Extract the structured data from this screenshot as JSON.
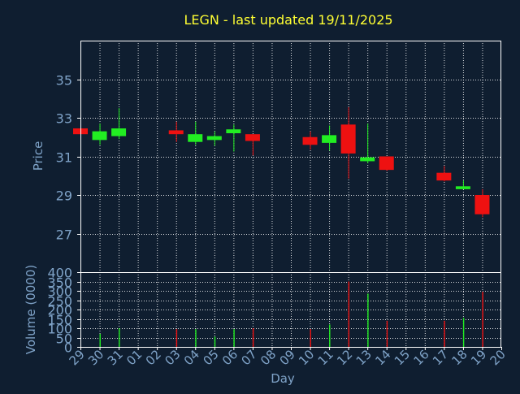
{
  "title": "LEGN - last updated 19/11/2025",
  "colors": {
    "background": "#0f1e30",
    "title": "#ffff33",
    "axis_text": "#7fa3c8",
    "frame": "#ffffff",
    "grid": "#ffffff",
    "up": "#22ee22",
    "down": "#ee1111"
  },
  "chart_data": [
    {
      "type": "candlestick",
      "ylabel": "Price",
      "ylim": [
        25,
        37
      ],
      "yticks": [
        27,
        29,
        31,
        33,
        35
      ],
      "grid": true,
      "candles": [
        {
          "day": "29",
          "open": 32.45,
          "high": 32.45,
          "low": 32.0,
          "close": 32.15
        },
        {
          "day": "30",
          "open": 31.85,
          "high": 32.7,
          "low": 31.6,
          "close": 32.3
        },
        {
          "day": "31",
          "open": 32.05,
          "high": 33.5,
          "low": 31.9,
          "close": 32.45
        },
        {
          "day": "03",
          "open": 32.35,
          "high": 32.8,
          "low": 31.75,
          "close": 32.15
        },
        {
          "day": "04",
          "open": 31.75,
          "high": 32.8,
          "low": 31.6,
          "close": 32.15
        },
        {
          "day": "05",
          "open": 31.85,
          "high": 32.3,
          "low": 31.55,
          "close": 32.05
        },
        {
          "day": "06",
          "open": 32.2,
          "high": 32.65,
          "low": 31.25,
          "close": 32.4
        },
        {
          "day": "07",
          "open": 32.15,
          "high": 32.15,
          "low": 31.05,
          "close": 31.8
        },
        {
          "day": "10",
          "open": 32.0,
          "high": 32.3,
          "low": 31.35,
          "close": 31.6
        },
        {
          "day": "11",
          "open": 31.7,
          "high": 32.6,
          "low": 31.3,
          "close": 32.1
        },
        {
          "day": "12",
          "open": 32.65,
          "high": 33.55,
          "low": 29.85,
          "close": 31.15
        },
        {
          "day": "13",
          "open": 30.75,
          "high": 32.7,
          "low": 30.65,
          "close": 30.95
        },
        {
          "day": "14",
          "open": 31.0,
          "high": 31.0,
          "low": 30.25,
          "close": 30.3
        },
        {
          "day": "17",
          "open": 30.15,
          "high": 30.5,
          "low": 29.7,
          "close": 29.75
        },
        {
          "day": "18",
          "open": 29.3,
          "high": 29.75,
          "low": 29.3,
          "close": 29.45
        },
        {
          "day": "19",
          "open": 29.0,
          "high": 29.3,
          "low": 27.85,
          "close": 28.0
        }
      ]
    },
    {
      "type": "bar",
      "ylabel": "Volume (0000)",
      "ylim": [
        0,
        400
      ],
      "yticks": [
        0,
        50,
        100,
        150,
        200,
        250,
        300,
        350,
        400
      ],
      "xlabel": "Day",
      "categories": [
        "29",
        "30",
        "31",
        "01",
        "02",
        "03",
        "04",
        "05",
        "06",
        "07",
        "08",
        "09",
        "10",
        "11",
        "12",
        "13",
        "14",
        "15",
        "16",
        "17",
        "18",
        "19",
        "20"
      ],
      "bars": [
        {
          "day": "30",
          "value": 70,
          "direction": "up"
        },
        {
          "day": "31",
          "value": 100,
          "direction": "up"
        },
        {
          "day": "03",
          "value": 95,
          "direction": "down"
        },
        {
          "day": "04",
          "value": 95,
          "direction": "up"
        },
        {
          "day": "05",
          "value": 55,
          "direction": "up"
        },
        {
          "day": "06",
          "value": 95,
          "direction": "up"
        },
        {
          "day": "07",
          "value": 100,
          "direction": "down"
        },
        {
          "day": "10",
          "value": 95,
          "direction": "down"
        },
        {
          "day": "11",
          "value": 120,
          "direction": "up"
        },
        {
          "day": "12",
          "value": 350,
          "direction": "down"
        },
        {
          "day": "13",
          "value": 285,
          "direction": "up"
        },
        {
          "day": "14",
          "value": 140,
          "direction": "down"
        },
        {
          "day": "17",
          "value": 140,
          "direction": "down"
        },
        {
          "day": "18",
          "value": 155,
          "direction": "up"
        },
        {
          "day": "19",
          "value": 295,
          "direction": "down"
        }
      ]
    }
  ]
}
